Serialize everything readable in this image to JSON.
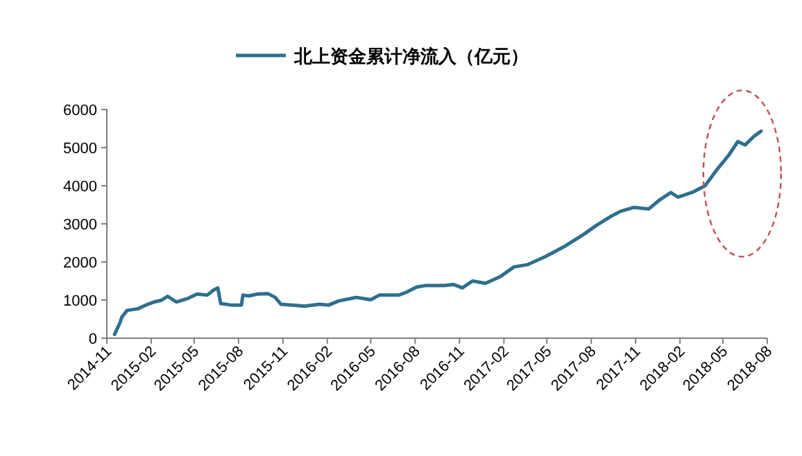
{
  "chart_data": {
    "type": "line",
    "legend": "top",
    "x": [
      "2014-11-17",
      "2014-11-28",
      "2014-12-02",
      "2014-12-13",
      "2015-01-04",
      "2015-01-25",
      "2015-02-07",
      "2015-02-21",
      "2015-03-07",
      "2015-03-25",
      "2015-04-19",
      "2015-05-07",
      "2015-05-28",
      "2015-06-10",
      "2015-06-19",
      "2015-06-25",
      "2015-07-16",
      "2015-08-07",
      "2015-08-10",
      "2015-08-22",
      "2015-09-10",
      "2015-10-01",
      "2015-10-16",
      "2015-10-28",
      "2015-11-19",
      "2015-12-16",
      "2016-01-16",
      "2016-02-04",
      "2016-02-25",
      "2016-04-01",
      "2016-05-01",
      "2016-05-19",
      "2016-06-28",
      "2016-07-13",
      "2016-08-04",
      "2016-08-22",
      "2016-10-01",
      "2016-10-19",
      "2016-11-07",
      "2016-11-28",
      "2016-12-25",
      "2017-01-25",
      "2017-02-22",
      "2017-03-22",
      "2017-04-28",
      "2017-06-07",
      "2017-07-16",
      "2017-08-13",
      "2017-09-10",
      "2017-10-01",
      "2017-10-28",
      "2017-11-28",
      "2017-12-22",
      "2018-01-13",
      "2018-01-28",
      "2018-03-01",
      "2018-03-25",
      "2018-04-19",
      "2018-05-13",
      "2018-06-01",
      "2018-06-16",
      "2018-07-04",
      "2018-07-19"
    ],
    "series": [
      {
        "name": "北上资金累计净流入（亿元）",
        "color": "#2f6f8f",
        "values": [
          100,
          400,
          550,
          730,
          770,
          890,
          950,
          990,
          1100,
          950,
          1050,
          1160,
          1130,
          1260,
          1320,
          910,
          870,
          870,
          1130,
          1110,
          1160,
          1170,
          1070,
          890,
          870,
          840,
          890,
          870,
          980,
          1070,
          1010,
          1130,
          1130,
          1200,
          1340,
          1380,
          1380,
          1410,
          1320,
          1500,
          1440,
          1620,
          1870,
          1930,
          2140,
          2410,
          2720,
          2970,
          3190,
          3330,
          3430,
          3390,
          3640,
          3820,
          3700,
          3840,
          4000,
          4430,
          4800,
          5160,
          5070,
          5290,
          5430
        ]
      }
    ],
    "xlim": [
      "2014-11",
      "2018-08"
    ],
    "xticks": [
      "2014-11",
      "2015-02",
      "2015-05",
      "2015-08",
      "2015-11",
      "2016-02",
      "2016-05",
      "2016-08",
      "2016-11",
      "2017-02",
      "2017-05",
      "2017-08",
      "2017-11",
      "2018-02",
      "2018-05",
      "2018-08"
    ],
    "ylim": [
      0,
      6000
    ],
    "yticks": [
      0,
      1000,
      2000,
      3000,
      4000,
      5000,
      6000
    ]
  }
}
